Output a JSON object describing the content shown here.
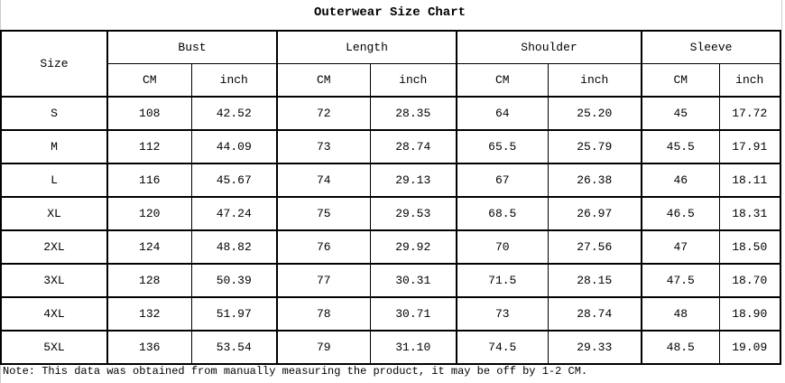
{
  "title": "Outerwear Size Chart",
  "header": {
    "size": "Size",
    "groups": [
      "Bust",
      "Length",
      "Shoulder",
      "Sleeve"
    ],
    "units": [
      "CM",
      "inch"
    ]
  },
  "rows": [
    [
      "S",
      "108",
      "42.52",
      "72",
      "28.35",
      "64",
      "25.20",
      "45",
      "17.72"
    ],
    [
      "M",
      "112",
      "44.09",
      "73",
      "28.74",
      "65.5",
      "25.79",
      "45.5",
      "17.91"
    ],
    [
      "L",
      "116",
      "45.67",
      "74",
      "29.13",
      "67",
      "26.38",
      "46",
      "18.11"
    ],
    [
      "XL",
      "120",
      "47.24",
      "75",
      "29.53",
      "68.5",
      "26.97",
      "46.5",
      "18.31"
    ],
    [
      "2XL",
      "124",
      "48.82",
      "76",
      "29.92",
      "70",
      "27.56",
      "47",
      "18.50"
    ],
    [
      "3XL",
      "128",
      "50.39",
      "77",
      "30.31",
      "71.5",
      "28.15",
      "47.5",
      "18.70"
    ],
    [
      "4XL",
      "132",
      "51.97",
      "78",
      "30.71",
      "73",
      "28.74",
      "48",
      "18.90"
    ],
    [
      "5XL",
      "136",
      "53.54",
      "79",
      "31.10",
      "74.5",
      "29.33",
      "48.5",
      "19.09"
    ]
  ],
  "note": "Note: This data was obtained from manually measuring the product, it may be off by 1-2 CM."
}
